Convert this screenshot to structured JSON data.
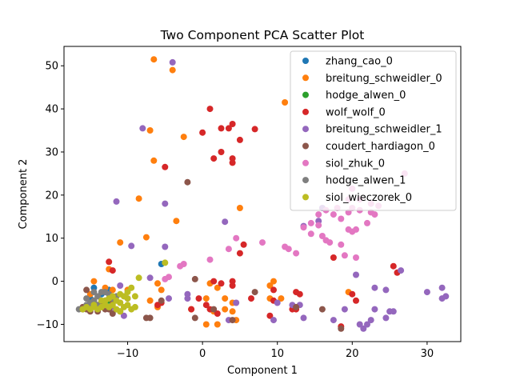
{
  "chart_data": {
    "type": "scatter",
    "title": "Two Component PCA Scatter Plot",
    "xlabel": "Component 1",
    "ylabel": "Component 2",
    "xlim": [
      -18.5,
      34.5
    ],
    "ylim": [
      -14,
      54.5
    ],
    "xticks": [
      -10,
      0,
      10,
      20,
      30
    ],
    "xtick_labels": [
      "−10",
      "0",
      "10",
      "20",
      "30"
    ],
    "yticks": [
      -10,
      0,
      10,
      20,
      30,
      40,
      50
    ],
    "ytick_labels": [
      "−10",
      "0",
      "10",
      "20",
      "30",
      "40",
      "50"
    ],
    "grid": false,
    "legend_position": "top-right",
    "series": [
      {
        "name": "zhang_cao_0",
        "color": "#1f77b4",
        "points": [
          [
            -5.5,
            4.0
          ],
          [
            -12.5,
            -2.0
          ],
          [
            -14.5,
            -1.5
          ],
          [
            -13.5,
            -3.0
          ],
          [
            -15.0,
            -4.0
          ]
        ]
      },
      {
        "name": "breitung_schweidler_0",
        "color": "#ff7f0e",
        "points": [
          [
            -6.5,
            51.5
          ],
          [
            -4.0,
            49.0
          ],
          [
            -7.0,
            35.0
          ],
          [
            -2.5,
            33.5
          ],
          [
            -6.5,
            28.0
          ],
          [
            -8.5,
            19.2
          ],
          [
            -3.5,
            14.0
          ],
          [
            5.0,
            17.0
          ],
          [
            -11.0,
            9.0
          ],
          [
            -7.5,
            10.2
          ],
          [
            -12.5,
            2.8
          ],
          [
            11.0,
            41.5
          ],
          [
            -14.5,
            0.0
          ],
          [
            -13.0,
            -1.5
          ],
          [
            -12.0,
            -2.0
          ],
          [
            -15.0,
            -3.0
          ],
          [
            -10.0,
            -2.0
          ],
          [
            -11.0,
            -5.0
          ],
          [
            -14.0,
            -5.5
          ],
          [
            -6.0,
            -0.5
          ],
          [
            -5.5,
            -2.0
          ],
          [
            -7.0,
            -4.5
          ],
          [
            -6.0,
            -6.0
          ],
          [
            1.0,
            -0.5
          ],
          [
            2.0,
            -1.5
          ],
          [
            3.0,
            -4.0
          ],
          [
            4.0,
            -5.0
          ],
          [
            0.5,
            -4.0
          ],
          [
            1.5,
            -7.0
          ],
          [
            0.5,
            -10.0
          ],
          [
            2.0,
            -10.0
          ],
          [
            4.5,
            -9.0
          ],
          [
            9.0,
            -1.0
          ],
          [
            9.5,
            0.0
          ],
          [
            10.5,
            -4.0
          ],
          [
            19.5,
            -2.5
          ],
          [
            3.0,
            -6.5
          ],
          [
            9.0,
            -4.0
          ],
          [
            -1.5,
            -6.5
          ],
          [
            4.0,
            -7.0
          ]
        ]
      },
      {
        "name": "hodge_alwen_0",
        "color": "#2ca02c",
        "points": [
          [
            -12.5,
            -4.5
          ],
          [
            -13.0,
            -5.0
          ]
        ]
      },
      {
        "name": "wolf_wolf_0",
        "color": "#d62728",
        "points": [
          [
            1.0,
            40.0
          ],
          [
            3.5,
            35.5
          ],
          [
            4.0,
            36.5
          ],
          [
            2.5,
            35.5
          ],
          [
            7.0,
            35.3
          ],
          [
            0.0,
            34.5
          ],
          [
            5.0,
            32.8
          ],
          [
            2.5,
            30.0
          ],
          [
            1.5,
            28.5
          ],
          [
            4.0,
            28.5
          ],
          [
            4.0,
            27.5
          ],
          [
            -5.0,
            26.5
          ],
          [
            5.5,
            8.5
          ],
          [
            5.0,
            6.5
          ],
          [
            17.5,
            5.5
          ],
          [
            -12.5,
            4.5
          ],
          [
            -12.0,
            2.5
          ],
          [
            1.5,
            0.0
          ],
          [
            2.5,
            -0.5
          ],
          [
            4.0,
            0.0
          ],
          [
            4.0,
            -1.0
          ],
          [
            9.5,
            -2.0
          ],
          [
            12.5,
            -2.5
          ],
          [
            13.0,
            -3.0
          ],
          [
            20.0,
            -3.0
          ],
          [
            20.5,
            -4.5
          ],
          [
            25.5,
            3.5
          ],
          [
            26.0,
            2.0
          ],
          [
            -0.5,
            -4.0
          ],
          [
            0.5,
            -5.5
          ],
          [
            -1.5,
            -6.5
          ],
          [
            1.0,
            -6.5
          ],
          [
            2.0,
            -7.5
          ],
          [
            6.5,
            -4.0
          ],
          [
            9.5,
            -4.5
          ],
          [
            9.0,
            -8.0
          ],
          [
            12.0,
            -6.5
          ],
          [
            12.5,
            -6.5
          ],
          [
            18.5,
            -10.5
          ],
          [
            -5.5,
            -5.0
          ],
          [
            -6.0,
            -5.5
          ]
        ]
      },
      {
        "name": "breitung_schweidler_1",
        "color": "#9467bd",
        "points": [
          [
            -4.0,
            50.8
          ],
          [
            -8.0,
            35.5
          ],
          [
            -5.0,
            18.0
          ],
          [
            -11.5,
            18.5
          ],
          [
            -9.5,
            8.2
          ],
          [
            -5.0,
            8.0
          ],
          [
            3.0,
            13.8
          ],
          [
            13.5,
            12.8
          ],
          [
            15.5,
            14.0
          ],
          [
            16.0,
            17.0
          ],
          [
            -7.0,
            0.8
          ],
          [
            -11.0,
            -1.0
          ],
          [
            -10.0,
            -4.0
          ],
          [
            -10.5,
            -8.0
          ],
          [
            -12.0,
            -6.0
          ],
          [
            -2.0,
            -3.0
          ],
          [
            -4.5,
            -4.0
          ],
          [
            10.0,
            -5.0
          ],
          [
            12.0,
            -5.5
          ],
          [
            13.0,
            -5.5
          ],
          [
            9.5,
            -9.0
          ],
          [
            13.5,
            -8.5
          ],
          [
            17.5,
            -9.0
          ],
          [
            19.0,
            -6.5
          ],
          [
            21.0,
            -10.0
          ],
          [
            21.5,
            -11.0
          ],
          [
            22.0,
            -10.0
          ],
          [
            22.5,
            -9.0
          ],
          [
            23.0,
            -6.5
          ],
          [
            24.5,
            -8.5
          ],
          [
            25.0,
            -7.0
          ],
          [
            25.5,
            -7.0
          ],
          [
            23.0,
            -1.5
          ],
          [
            24.5,
            -2.0
          ],
          [
            26.5,
            2.5
          ],
          [
            30.0,
            -2.5
          ],
          [
            32.0,
            -1.5
          ],
          [
            32.5,
            -3.5
          ],
          [
            32.0,
            -4.0
          ],
          [
            20.5,
            1.5
          ],
          [
            -2.0,
            -4.0
          ],
          [
            3.5,
            -9.0
          ],
          [
            4.5,
            -5.0
          ]
        ]
      },
      {
        "name": "coudert_hardiagon_0",
        "color": "#8c564b",
        "points": [
          [
            -2.0,
            23.0
          ],
          [
            -1.0,
            0.5
          ],
          [
            -5.5,
            -4.5
          ],
          [
            -7.5,
            -8.5
          ],
          [
            -7.0,
            -8.5
          ],
          [
            -1.0,
            -8.5
          ],
          [
            1.5,
            -6.5
          ],
          [
            4.0,
            -9.0
          ],
          [
            7.0,
            -2.5
          ],
          [
            12.5,
            -6.0
          ],
          [
            16.0,
            -6.5
          ],
          [
            18.5,
            -11.0
          ],
          [
            -16.0,
            -6.0
          ],
          [
            -15.0,
            -7.0
          ],
          [
            -14.0,
            -6.0
          ],
          [
            -13.0,
            -6.5
          ],
          [
            -12.0,
            -7.5
          ],
          [
            -11.0,
            -7.0
          ],
          [
            -15.5,
            -2.0
          ],
          [
            -14.5,
            -4.5
          ],
          [
            -13.5,
            -5.0
          ],
          [
            -12.5,
            -6.5
          ],
          [
            -15.5,
            -6.5
          ],
          [
            -14.0,
            -7.0
          ],
          [
            -12.0,
            -5.0
          ]
        ]
      },
      {
        "name": "siol_zhuk_0",
        "color": "#e377c2",
        "points": [
          [
            27.0,
            25.0
          ],
          [
            20.0,
            21.5
          ],
          [
            19.5,
            19.0
          ],
          [
            21.0,
            19.0
          ],
          [
            22.5,
            18.0
          ],
          [
            23.5,
            17.5
          ],
          [
            20.0,
            17.0
          ],
          [
            21.0,
            16.5
          ],
          [
            22.5,
            16.0
          ],
          [
            23.0,
            15.5
          ],
          [
            19.5,
            16.0
          ],
          [
            18.0,
            17.0
          ],
          [
            16.5,
            16.5
          ],
          [
            18.5,
            14.5
          ],
          [
            17.5,
            15.5
          ],
          [
            15.5,
            15.5
          ],
          [
            14.5,
            13.5
          ],
          [
            13.5,
            12.5
          ],
          [
            15.5,
            13.0
          ],
          [
            19.5,
            12.0
          ],
          [
            20.0,
            11.5
          ],
          [
            22.0,
            13.5
          ],
          [
            14.5,
            11.0
          ],
          [
            16.0,
            10.5
          ],
          [
            16.5,
            9.5
          ],
          [
            20.5,
            12.0
          ],
          [
            17.0,
            9.0
          ],
          [
            18.5,
            8.5
          ],
          [
            19.0,
            6.0
          ],
          [
            20.5,
            5.5
          ],
          [
            11.0,
            8.0
          ],
          [
            11.5,
            7.5
          ],
          [
            12.5,
            6.5
          ],
          [
            8.0,
            9.0
          ],
          [
            4.5,
            10.0
          ],
          [
            3.5,
            7.5
          ],
          [
            1.0,
            5.0
          ],
          [
            -2.5,
            4.0
          ],
          [
            -3.0,
            3.5
          ],
          [
            -4.5,
            1.0
          ],
          [
            -5.0,
            0.5
          ]
        ]
      },
      {
        "name": "hodge_alwen_1",
        "color": "#7f7f7f",
        "points": [
          [
            -16.5,
            -6.5
          ],
          [
            -16.0,
            -6.5
          ],
          [
            -15.5,
            -5.5
          ],
          [
            -15.0,
            -5.0
          ],
          [
            -14.5,
            -4.5
          ],
          [
            -14.0,
            -3.5
          ],
          [
            -13.5,
            -2.5
          ],
          [
            -13.0,
            -2.5
          ],
          [
            -12.5,
            -3.0
          ],
          [
            -15.0,
            -6.0
          ],
          [
            -14.0,
            -5.5
          ],
          [
            -13.0,
            -4.5
          ],
          [
            -12.0,
            -4.0
          ],
          [
            -11.5,
            -3.5
          ],
          [
            -14.5,
            -2.5
          ],
          [
            -15.5,
            -4.0
          ]
        ]
      },
      {
        "name": "siol_wieczorek_0",
        "color": "#bcbd22",
        "points": [
          [
            -5.0,
            4.3
          ],
          [
            -8.5,
            0.8
          ],
          [
            -9.5,
            -1.5
          ],
          [
            -10.0,
            -2.5
          ],
          [
            -10.5,
            -3.5
          ],
          [
            -11.0,
            -3.0
          ],
          [
            -11.5,
            -4.5
          ],
          [
            -12.0,
            -5.5
          ],
          [
            -12.5,
            -6.0
          ],
          [
            -13.0,
            -5.5
          ],
          [
            -13.5,
            -6.0
          ],
          [
            -14.0,
            -6.5
          ],
          [
            -14.5,
            -6.0
          ],
          [
            -15.0,
            -6.5
          ],
          [
            -15.5,
            -6.0
          ],
          [
            -16.0,
            -6.5
          ],
          [
            -11.5,
            -6.5
          ],
          [
            -11.0,
            -7.0
          ],
          [
            -10.5,
            -6.0
          ],
          [
            -10.0,
            -5.5
          ],
          [
            -9.5,
            -6.5
          ],
          [
            -9.0,
            -6.0
          ],
          [
            -12.5,
            -4.0
          ],
          [
            -13.0,
            -4.5
          ],
          [
            -11.0,
            -5.0
          ],
          [
            -10.0,
            -4.0
          ],
          [
            -9.0,
            -3.5
          ],
          [
            -12.0,
            -3.5
          ],
          [
            -13.5,
            -4.5
          ],
          [
            -14.5,
            -5.5
          ]
        ]
      }
    ]
  }
}
